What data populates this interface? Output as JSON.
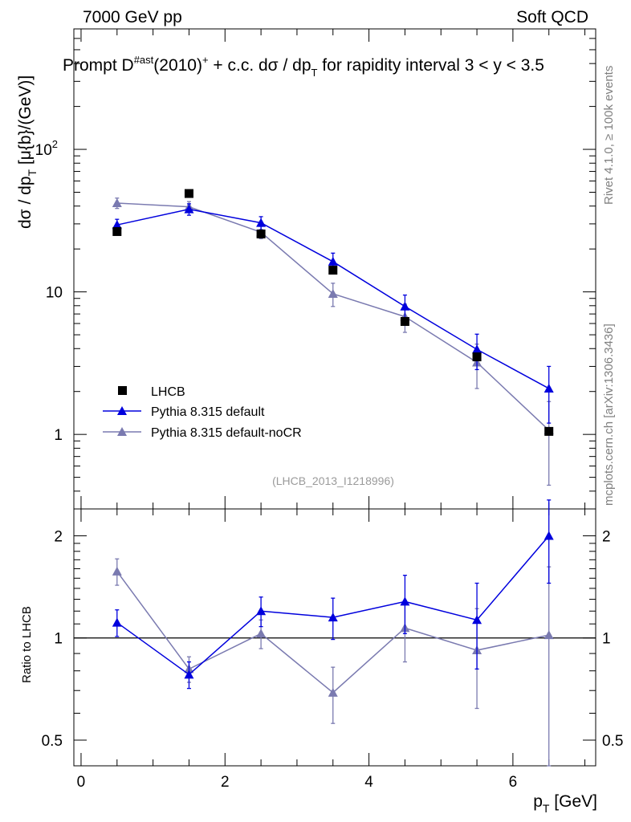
{
  "header": {
    "left": "7000 GeV pp",
    "right": "Soft QCD",
    "title_main": "Prompt D",
    "title_sup": "#ast",
    "title_rest": "(2010)",
    "title_sup2": "+",
    "title_rest2": " + c.c.  dσ / dp",
    "title_sub": "T",
    "title_rest3": " for rapidity interval 3 < y < 3.5"
  },
  "side": {
    "rivet": "Rivet 4.1.0, ≥ 100k events",
    "mcplots": "mcplots.cern.ch [arXiv:1306.3436]"
  },
  "watermark": "(LHCB_2013_I1218996)",
  "axes": {
    "ylabel_main_a": "dσ / dp",
    "ylabel_main_sub": "T",
    "ylabel_main_b": " [μ{b}/(GeV)]",
    "ylabel_ratio": "Ratio to LHCB",
    "xlabel_a": "p",
    "xlabel_sub": "T",
    "xlabel_b": " [GeV]"
  },
  "legend": {
    "data": "LHCB",
    "mc1": "Pythia 8.315 default",
    "mc2": "Pythia 8.315 default-noCR"
  },
  "colors": {
    "data": "#000000",
    "mc1": "#0000dd",
    "mc2": "#7a7ab0"
  },
  "chart_data": {
    "type": "scatter",
    "x": [
      0.5,
      1.5,
      2.5,
      3.5,
      4.5,
      5.5,
      6.5
    ],
    "xlim": [
      -0.1,
      7.15
    ],
    "xticks": [
      0,
      2,
      4,
      6
    ],
    "main": {
      "yscale": "log",
      "ylim": [
        0.3,
        700
      ],
      "yticks": [
        {
          "v": 1,
          "label": "1"
        },
        {
          "v": 10,
          "label": "10"
        },
        {
          "v": 100,
          "label": "10",
          "sup": "2"
        }
      ],
      "series": [
        {
          "name": "LHCB",
          "kind": "data",
          "values": [
            26.5,
            49,
            25.5,
            14.2,
            6.2,
            3.5,
            1.05
          ]
        },
        {
          "name": "Pythia 8.315 default",
          "kind": "mc1",
          "values": [
            29.5,
            38,
            30.5,
            16.3,
            7.9,
            3.95,
            2.1
          ],
          "err": [
            2.8,
            3.5,
            3.2,
            2.4,
            1.6,
            1.1,
            0.9
          ]
        },
        {
          "name": "Pythia 8.315 default-noCR",
          "kind": "mc2",
          "values": [
            42,
            39.5,
            26.2,
            9.7,
            6.7,
            3.2,
            1.07
          ],
          "err": [
            3.5,
            3.5,
            2.6,
            1.8,
            1.5,
            1.1,
            0.63
          ]
        }
      ]
    },
    "ratio": {
      "yscale": "log",
      "ylim": [
        0.42,
        2.4
      ],
      "yticks": [
        {
          "v": 0.5,
          "label": "0.5"
        },
        {
          "v": 1,
          "label": "1"
        },
        {
          "v": 2,
          "label": "2"
        }
      ],
      "reference": 1,
      "series": [
        {
          "name": "Pythia 8.315 default",
          "kind": "mc1",
          "values": [
            1.11,
            0.78,
            1.2,
            1.15,
            1.28,
            1.13,
            2.0
          ],
          "err": [
            0.1,
            0.07,
            0.12,
            0.16,
            0.25,
            0.32,
            0.55
          ]
        },
        {
          "name": "Pythia 8.315 default-noCR",
          "kind": "mc2",
          "values": [
            1.57,
            0.81,
            1.03,
            0.69,
            1.07,
            0.92,
            1.02
          ],
          "err": [
            0.14,
            0.07,
            0.1,
            0.13,
            0.22,
            0.3,
            0.6
          ]
        }
      ]
    }
  }
}
